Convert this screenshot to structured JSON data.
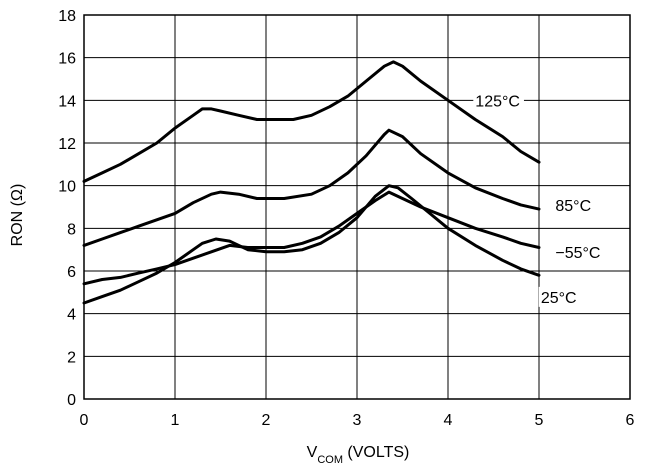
{
  "chart_data": {
    "type": "line",
    "xlabel": {
      "main": "V",
      "sub": "COM",
      "rest": " (VOLTS)"
    },
    "ylabel": "RON (Ω)",
    "xlim": [
      0,
      6
    ],
    "ylim": [
      0,
      18
    ],
    "xticks": [
      0,
      1,
      2,
      3,
      4,
      5,
      6
    ],
    "yticks": [
      0,
      2,
      4,
      6,
      8,
      10,
      12,
      14,
      16,
      18
    ],
    "grid": true,
    "line_color": "#000000",
    "series": [
      {
        "name": "125°C",
        "x": [
          0,
          0.2,
          0.4,
          0.6,
          0.8,
          1.0,
          1.2,
          1.3,
          1.4,
          1.5,
          1.7,
          1.9,
          2.1,
          2.3,
          2.5,
          2.7,
          2.9,
          3.1,
          3.3,
          3.4,
          3.5,
          3.7,
          4.0,
          4.3,
          4.6,
          4.8,
          5.0
        ],
        "y": [
          10.2,
          10.6,
          11.0,
          11.5,
          12.0,
          12.7,
          13.3,
          13.6,
          13.6,
          13.5,
          13.3,
          13.1,
          13.1,
          13.1,
          13.3,
          13.7,
          14.2,
          14.9,
          15.6,
          15.8,
          15.6,
          14.9,
          14.0,
          13.1,
          12.3,
          11.6,
          11.1
        ]
      },
      {
        "name": "85°C",
        "x": [
          0,
          0.2,
          0.4,
          0.6,
          0.8,
          1.0,
          1.2,
          1.4,
          1.5,
          1.7,
          1.9,
          2.2,
          2.5,
          2.7,
          2.9,
          3.1,
          3.3,
          3.35,
          3.5,
          3.7,
          4.0,
          4.3,
          4.6,
          4.8,
          5.0
        ],
        "y": [
          7.2,
          7.5,
          7.8,
          8.1,
          8.4,
          8.7,
          9.2,
          9.6,
          9.7,
          9.6,
          9.4,
          9.4,
          9.6,
          10.0,
          10.6,
          11.4,
          12.4,
          12.6,
          12.3,
          11.5,
          10.6,
          9.9,
          9.4,
          9.1,
          8.9
        ]
      },
      {
        "name": "−55°C",
        "x": [
          0,
          0.2,
          0.4,
          0.6,
          0.8,
          1.0,
          1.2,
          1.4,
          1.6,
          1.8,
          2.0,
          2.2,
          2.4,
          2.6,
          2.8,
          3.0,
          3.2,
          3.35,
          3.5,
          3.7,
          4.0,
          4.3,
          4.6,
          4.8,
          5.0
        ],
        "y": [
          5.4,
          5.6,
          5.7,
          5.9,
          6.1,
          6.3,
          6.6,
          6.9,
          7.2,
          7.1,
          7.1,
          7.1,
          7.3,
          7.6,
          8.1,
          8.7,
          9.3,
          9.7,
          9.4,
          9.0,
          8.5,
          8.0,
          7.6,
          7.3,
          7.1
        ]
      },
      {
        "name": "25°C",
        "x": [
          0,
          0.2,
          0.4,
          0.6,
          0.8,
          1.0,
          1.2,
          1.3,
          1.45,
          1.6,
          1.8,
          2.0,
          2.2,
          2.4,
          2.6,
          2.8,
          3.0,
          3.2,
          3.35,
          3.45,
          3.6,
          3.8,
          4.0,
          4.3,
          4.6,
          4.8,
          5.0
        ],
        "y": [
          4.5,
          4.8,
          5.1,
          5.5,
          5.9,
          6.4,
          7.0,
          7.3,
          7.5,
          7.4,
          7.0,
          6.9,
          6.9,
          7.0,
          7.3,
          7.8,
          8.5,
          9.5,
          10.0,
          9.9,
          9.4,
          8.7,
          8.0,
          7.2,
          6.5,
          6.1,
          5.8
        ]
      }
    ],
    "series_label_pos": [
      {
        "name": "125°C",
        "x": 4.3,
        "y": 13.8
      },
      {
        "name": "85°C",
        "x": 5.18,
        "y": 8.9
      },
      {
        "name": "−55°C",
        "x": 5.18,
        "y": 6.7
      },
      {
        "name": "25°C",
        "x": 5.02,
        "y": 4.6
      }
    ]
  }
}
